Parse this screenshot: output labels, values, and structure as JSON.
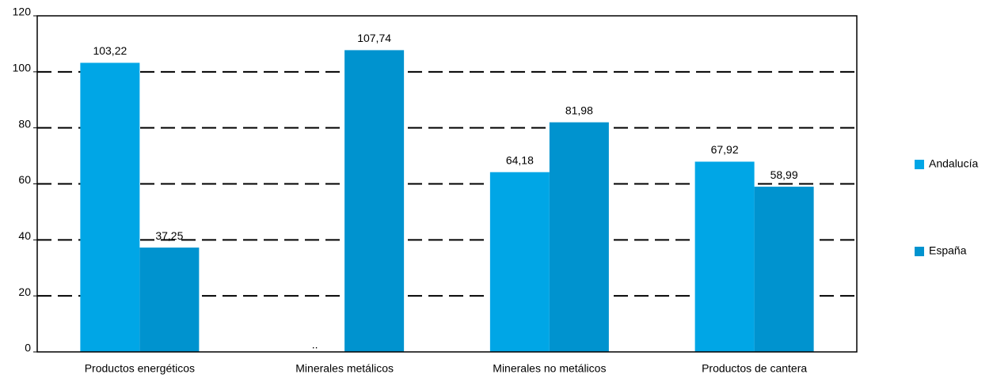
{
  "chart_data": {
    "type": "bar",
    "categories": [
      "Productos energéticos",
      "Minerales metálicos",
      "Minerales no metálicos",
      "Productos de cantera"
    ],
    "series": [
      {
        "name": "Andalucía",
        "color": "#00a6e6",
        "values": [
          103.22,
          null,
          64.18,
          67.92
        ],
        "value_labels": [
          "103,22",
          "..",
          "64,18",
          "67,92"
        ]
      },
      {
        "name": "España",
        "color": "#0093cf",
        "values": [
          37.25,
          107.74,
          81.98,
          58.99
        ],
        "value_labels": [
          "37,25",
          "107,74",
          "81,98",
          "58,99"
        ]
      }
    ],
    "ylim": [
      0,
      120
    ],
    "yticks": [
      0,
      20,
      40,
      60,
      80,
      100,
      120
    ],
    "grid": true,
    "legend": "right"
  }
}
